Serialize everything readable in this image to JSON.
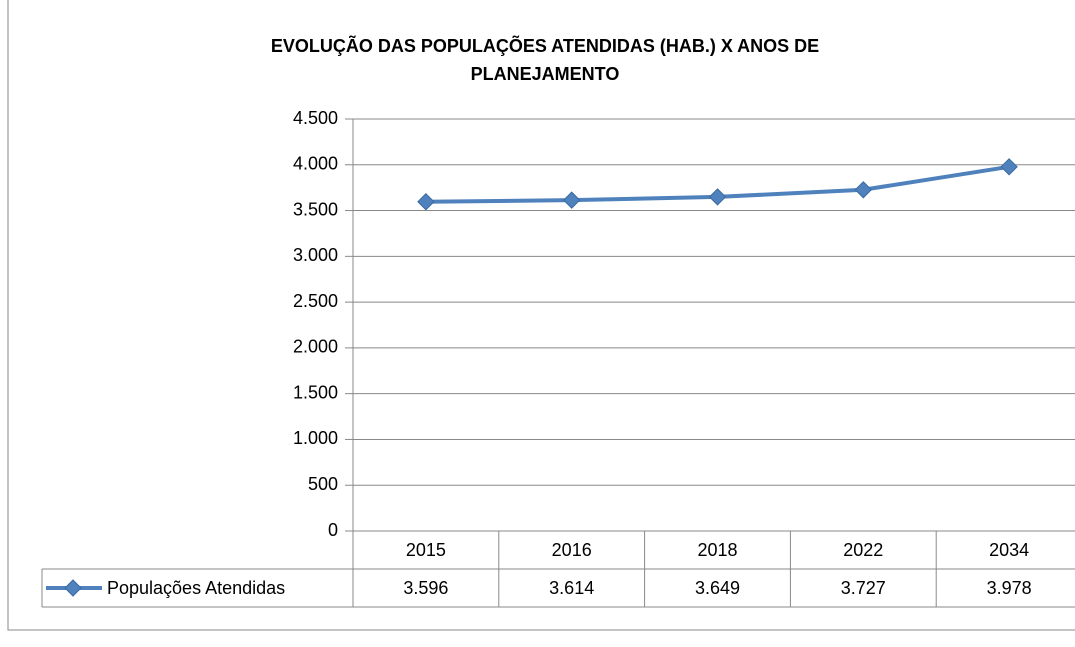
{
  "chart_data": {
    "type": "line",
    "title": "EVOLUÇÃO DAS POPULAÇÕES ATENDIDAS (HAB.) X ANOS DE PLANEJAMENTO",
    "categories": [
      "2015",
      "2016",
      "2018",
      "2022",
      "2034"
    ],
    "series": [
      {
        "name": "Populações Atendidas",
        "color": "#4f81bd",
        "values": [
          3596,
          3614,
          3649,
          3727,
          3978
        ],
        "value_labels": [
          "3.596",
          "3.614",
          "3.649",
          "3.727",
          "3.978"
        ]
      }
    ],
    "ylim": [
      0,
      4500
    ],
    "yticks": [
      0,
      500,
      {
        "value": 1000,
        "label": "1.000"
      },
      {
        "value": 1500,
        "label": "1.500"
      },
      {
        "value": 2000,
        "label": "2.000"
      },
      {
        "value": 2500,
        "label": "2.500"
      },
      {
        "value": 3000,
        "label": "3.000"
      },
      {
        "value": 3500,
        "label": "3.500"
      },
      {
        "value": 4000,
        "label": "4.000"
      },
      {
        "value": 4500,
        "label": "4.500"
      }
    ],
    "grid": true
  }
}
